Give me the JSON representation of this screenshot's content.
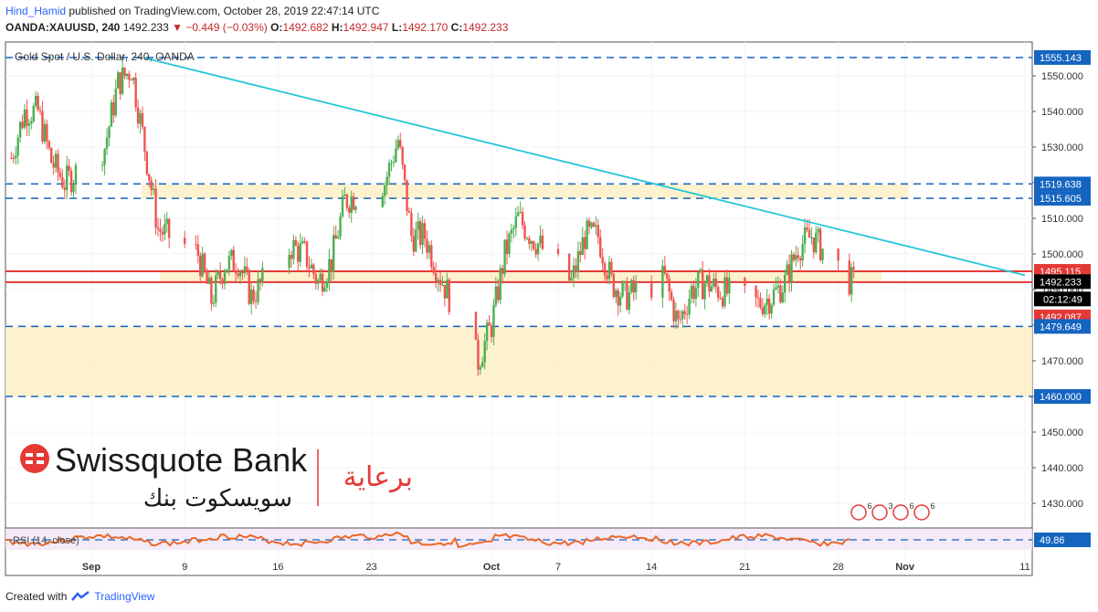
{
  "header": {
    "publisher": "Hind_Hamid",
    "published_text": "published on TradingView.com, October 28, 2019 22:47:14 UTC",
    "symbol": "OANDA:XAUUSD, 240",
    "last": "1492.233",
    "change": "−0.449 (−0.03%)",
    "o_label": "O:",
    "o": "1492.682",
    "h_label": "H:",
    "h": "1492.947",
    "l_label": "L:",
    "l": "1492.170",
    "c_label": "C:",
    "c": "1492.233"
  },
  "chart_title": "Gold Spot / U.S. Dollar, 240, OANDA",
  "footer": {
    "created_with": "Created with",
    "brand": "TradingView"
  },
  "logo": {
    "brand": "Swissquote Bank",
    "arabic_brand": "سويسكوت بنك",
    "arabic_sponsor": "برعاية"
  },
  "rsi_label": "RSI (14, close)",
  "rsi_value": "49.86",
  "countdown": "02:12:49",
  "event_counts": [
    "6",
    "3",
    "6",
    "6"
  ],
  "colors": {
    "up": "#4caf50",
    "down": "#ef5350",
    "trend": "#26c6da",
    "zone": "#fdeec6",
    "dash": "#1565c0",
    "red_line": "#e53935",
    "rsi": "#e8692c"
  },
  "chart_data": {
    "type": "candlestick",
    "title": "Gold Spot / U.S. Dollar, 240, OANDA",
    "y_ticks": [
      1430,
      1440,
      1450,
      1460,
      1470,
      1480,
      1490,
      1500,
      1510,
      1520,
      1530,
      1540,
      1550
    ],
    "x_ticks": [
      "Sep",
      "9",
      "16",
      "23",
      "Oct",
      "7",
      "14",
      "21",
      "28",
      "Nov",
      "11"
    ],
    "price_labels": [
      {
        "value": 1555.143,
        "text": "1555.143",
        "style": "dash"
      },
      {
        "value": 1519.638,
        "text": "1519.638",
        "style": "dash"
      },
      {
        "value": 1515.605,
        "text": "1515.605",
        "style": "dash"
      },
      {
        "value": 1495.115,
        "text": "1495.115",
        "style": "red"
      },
      {
        "value": 1492.233,
        "text": "1492.233",
        "style": "last"
      },
      {
        "value": 1492.087,
        "text": "1492.087",
        "style": "red"
      },
      {
        "value": 1479.649,
        "text": "1479.649",
        "style": "dash"
      },
      {
        "value": 1460.0,
        "text": "1460.000",
        "style": "dash"
      }
    ],
    "zones": [
      {
        "from": 1515.6,
        "to": 1519.6
      },
      {
        "from": 1492.1,
        "to": 1495.1
      },
      {
        "from": 1460.0,
        "to": 1479.6
      }
    ],
    "trendline": {
      "from": {
        "date": "2019-09-05",
        "value": 1555
      },
      "to": {
        "date": "2019-11-10",
        "value": 1494
      }
    },
    "close_path": [
      [
        "2019-08-26",
        1527
      ],
      [
        "2019-08-27",
        1540
      ],
      [
        "2019-08-28",
        1540
      ],
      [
        "2019-08-29",
        1526
      ],
      [
        "2019-08-30",
        1520
      ],
      [
        "2019-09-02",
        1530
      ],
      [
        "2019-09-03",
        1548
      ],
      [
        "2019-09-04",
        1552
      ],
      [
        "2019-09-05",
        1530
      ],
      [
        "2019-09-06",
        1507
      ],
      [
        "2019-09-09",
        1500
      ],
      [
        "2019-09-10",
        1487
      ],
      [
        "2019-09-11",
        1497
      ],
      [
        "2019-09-12",
        1498
      ],
      [
        "2019-09-13",
        1488
      ],
      [
        "2019-09-16",
        1502
      ],
      [
        "2019-09-17",
        1500
      ],
      [
        "2019-09-18",
        1492
      ],
      [
        "2019-09-19",
        1498
      ],
      [
        "2019-09-20",
        1515
      ],
      [
        "2019-09-23",
        1520
      ],
      [
        "2019-09-24",
        1532
      ],
      [
        "2019-09-25",
        1505
      ],
      [
        "2019-09-26",
        1505
      ],
      [
        "2019-09-27",
        1495
      ],
      [
        "2019-09-30",
        1470
      ],
      [
        "2019-10-01",
        1480
      ],
      [
        "2019-10-02",
        1500
      ],
      [
        "2019-10-03",
        1510
      ],
      [
        "2019-10-04",
        1505
      ],
      [
        "2019-10-07",
        1492
      ],
      [
        "2019-10-08",
        1505
      ],
      [
        "2019-10-09",
        1505
      ],
      [
        "2019-10-10",
        1492
      ],
      [
        "2019-10-11",
        1488
      ],
      [
        "2019-10-14",
        1493
      ],
      [
        "2019-10-15",
        1480
      ],
      [
        "2019-10-16",
        1490
      ],
      [
        "2019-10-17",
        1492
      ],
      [
        "2019-10-18",
        1490
      ],
      [
        "2019-10-21",
        1486
      ],
      [
        "2019-10-22",
        1488
      ],
      [
        "2019-10-23",
        1492
      ],
      [
        "2019-10-24",
        1502
      ],
      [
        "2019-10-25",
        1505
      ],
      [
        "2019-10-28",
        1492
      ]
    ],
    "rsi": {
      "label": "RSI (14, close)",
      "last": 49.86
    }
  }
}
